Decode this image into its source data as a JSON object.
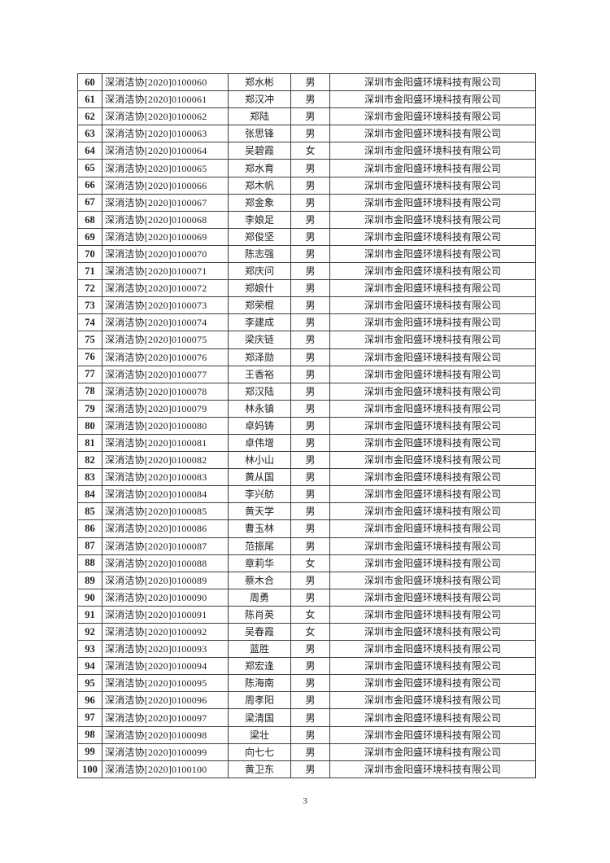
{
  "page": {
    "number": "3"
  },
  "table": {
    "rows": [
      {
        "no": "60",
        "cert": "深消洁协[2020]0100060",
        "name": "郑水彬",
        "gender": "男",
        "company": "深圳市金阳盛环境科技有限公司"
      },
      {
        "no": "61",
        "cert": "深消洁协[2020]0100061",
        "name": "郑汉冲",
        "gender": "男",
        "company": "深圳市金阳盛环境科技有限公司"
      },
      {
        "no": "62",
        "cert": "深消洁协[2020]0100062",
        "name": "郑陆",
        "gender": "男",
        "company": "深圳市金阳盛环境科技有限公司"
      },
      {
        "no": "63",
        "cert": "深消洁协[2020]0100063",
        "name": "张思锋",
        "gender": "男",
        "company": "深圳市金阳盛环境科技有限公司"
      },
      {
        "no": "64",
        "cert": "深消洁协[2020]0100064",
        "name": "吴碧霞",
        "gender": "女",
        "company": "深圳市金阳盛环境科技有限公司"
      },
      {
        "no": "65",
        "cert": "深消洁协[2020]0100065",
        "name": "郑水育",
        "gender": "男",
        "company": "深圳市金阳盛环境科技有限公司"
      },
      {
        "no": "66",
        "cert": "深消洁协[2020]0100066",
        "name": "郑木帆",
        "gender": "男",
        "company": "深圳市金阳盛环境科技有限公司"
      },
      {
        "no": "67",
        "cert": "深消洁协[2020]0100067",
        "name": "郑金象",
        "gender": "男",
        "company": "深圳市金阳盛环境科技有限公司"
      },
      {
        "no": "68",
        "cert": "深消洁协[2020]0100068",
        "name": "李娘足",
        "gender": "男",
        "company": "深圳市金阳盛环境科技有限公司"
      },
      {
        "no": "69",
        "cert": "深消洁协[2020]0100069",
        "name": "郑俊坚",
        "gender": "男",
        "company": "深圳市金阳盛环境科技有限公司"
      },
      {
        "no": "70",
        "cert": "深消洁协[2020]0100070",
        "name": "陈志强",
        "gender": "男",
        "company": "深圳市金阳盛环境科技有限公司"
      },
      {
        "no": "71",
        "cert": "深消洁协[2020]0100071",
        "name": "郑庆问",
        "gender": "男",
        "company": "深圳市金阳盛环境科技有限公司"
      },
      {
        "no": "72",
        "cert": "深消洁协[2020]0100072",
        "name": "郑娘什",
        "gender": "男",
        "company": "深圳市金阳盛环境科技有限公司"
      },
      {
        "no": "73",
        "cert": "深消洁协[2020]0100073",
        "name": "郑荣棍",
        "gender": "男",
        "company": "深圳市金阳盛环境科技有限公司"
      },
      {
        "no": "74",
        "cert": "深消洁协[2020]0100074",
        "name": "李建成",
        "gender": "男",
        "company": "深圳市金阳盛环境科技有限公司"
      },
      {
        "no": "75",
        "cert": "深消洁协[2020]0100075",
        "name": "梁庆链",
        "gender": "男",
        "company": "深圳市金阳盛环境科技有限公司"
      },
      {
        "no": "76",
        "cert": "深消洁协[2020]0100076",
        "name": "郑泽勋",
        "gender": "男",
        "company": "深圳市金阳盛环境科技有限公司"
      },
      {
        "no": "77",
        "cert": "深消洁协[2020]0100077",
        "name": "王香裕",
        "gender": "男",
        "company": "深圳市金阳盛环境科技有限公司"
      },
      {
        "no": "78",
        "cert": "深消洁协[2020]0100078",
        "name": "郑汉陆",
        "gender": "男",
        "company": "深圳市金阳盛环境科技有限公司"
      },
      {
        "no": "79",
        "cert": "深消洁协[2020]0100079",
        "name": "林永镇",
        "gender": "男",
        "company": "深圳市金阳盛环境科技有限公司"
      },
      {
        "no": "80",
        "cert": "深消洁协[2020]0100080",
        "name": "卓妈铸",
        "gender": "男",
        "company": "深圳市金阳盛环境科技有限公司"
      },
      {
        "no": "81",
        "cert": "深消洁协[2020]0100081",
        "name": "卓伟增",
        "gender": "男",
        "company": "深圳市金阳盛环境科技有限公司"
      },
      {
        "no": "82",
        "cert": "深消洁协[2020]0100082",
        "name": "林小山",
        "gender": "男",
        "company": "深圳市金阳盛环境科技有限公司"
      },
      {
        "no": "83",
        "cert": "深消洁协[2020]0100083",
        "name": "黄从国",
        "gender": "男",
        "company": "深圳市金阳盛环境科技有限公司"
      },
      {
        "no": "84",
        "cert": "深消洁协[2020]0100084",
        "name": "李兴舫",
        "gender": "男",
        "company": "深圳市金阳盛环境科技有限公司"
      },
      {
        "no": "85",
        "cert": "深消洁协[2020]0100085",
        "name": "黄天学",
        "gender": "男",
        "company": "深圳市金阳盛环境科技有限公司"
      },
      {
        "no": "86",
        "cert": "深消洁协[2020]0100086",
        "name": "曹玉林",
        "gender": "男",
        "company": "深圳市金阳盛环境科技有限公司"
      },
      {
        "no": "87",
        "cert": "深消洁协[2020]0100087",
        "name": "范振尾",
        "gender": "男",
        "company": "深圳市金阳盛环境科技有限公司"
      },
      {
        "no": "88",
        "cert": "深消洁协[2020]0100088",
        "name": "章莉华",
        "gender": "女",
        "company": "深圳市金阳盛环境科技有限公司"
      },
      {
        "no": "89",
        "cert": "深消洁协[2020]0100089",
        "name": "蔡木合",
        "gender": "男",
        "company": "深圳市金阳盛环境科技有限公司"
      },
      {
        "no": "90",
        "cert": "深消洁协[2020]0100090",
        "name": "周勇",
        "gender": "男",
        "company": "深圳市金阳盛环境科技有限公司"
      },
      {
        "no": "91",
        "cert": "深消洁协[2020]0100091",
        "name": "陈肖英",
        "gender": "女",
        "company": "深圳市金阳盛环境科技有限公司"
      },
      {
        "no": "92",
        "cert": "深消洁协[2020]0100092",
        "name": "吴春霞",
        "gender": "女",
        "company": "深圳市金阳盛环境科技有限公司"
      },
      {
        "no": "93",
        "cert": "深消洁协[2020]0100093",
        "name": "蓝胜",
        "gender": "男",
        "company": "深圳市金阳盛环境科技有限公司"
      },
      {
        "no": "94",
        "cert": "深消洁协[2020]0100094",
        "name": "郑宏逢",
        "gender": "男",
        "company": "深圳市金阳盛环境科技有限公司"
      },
      {
        "no": "95",
        "cert": "深消洁协[2020]0100095",
        "name": "陈海南",
        "gender": "男",
        "company": "深圳市金阳盛环境科技有限公司"
      },
      {
        "no": "96",
        "cert": "深消洁协[2020]0100096",
        "name": "周孝阳",
        "gender": "男",
        "company": "深圳市金阳盛环境科技有限公司"
      },
      {
        "no": "97",
        "cert": "深消洁协[2020]0100097",
        "name": "梁清国",
        "gender": "男",
        "company": "深圳市金阳盛环境科技有限公司"
      },
      {
        "no": "98",
        "cert": "深消洁协[2020]0100098",
        "name": "梁壮",
        "gender": "男",
        "company": "深圳市金阳盛环境科技有限公司"
      },
      {
        "no": "99",
        "cert": "深消洁协[2020]0100099",
        "name": "向七七",
        "gender": "男",
        "company": "深圳市金阳盛环境科技有限公司"
      },
      {
        "no": "100",
        "cert": "深消洁协[2020]0100100",
        "name": "黄卫东",
        "gender": "男",
        "company": "深圳市金阳盛环境科技有限公司"
      }
    ]
  }
}
